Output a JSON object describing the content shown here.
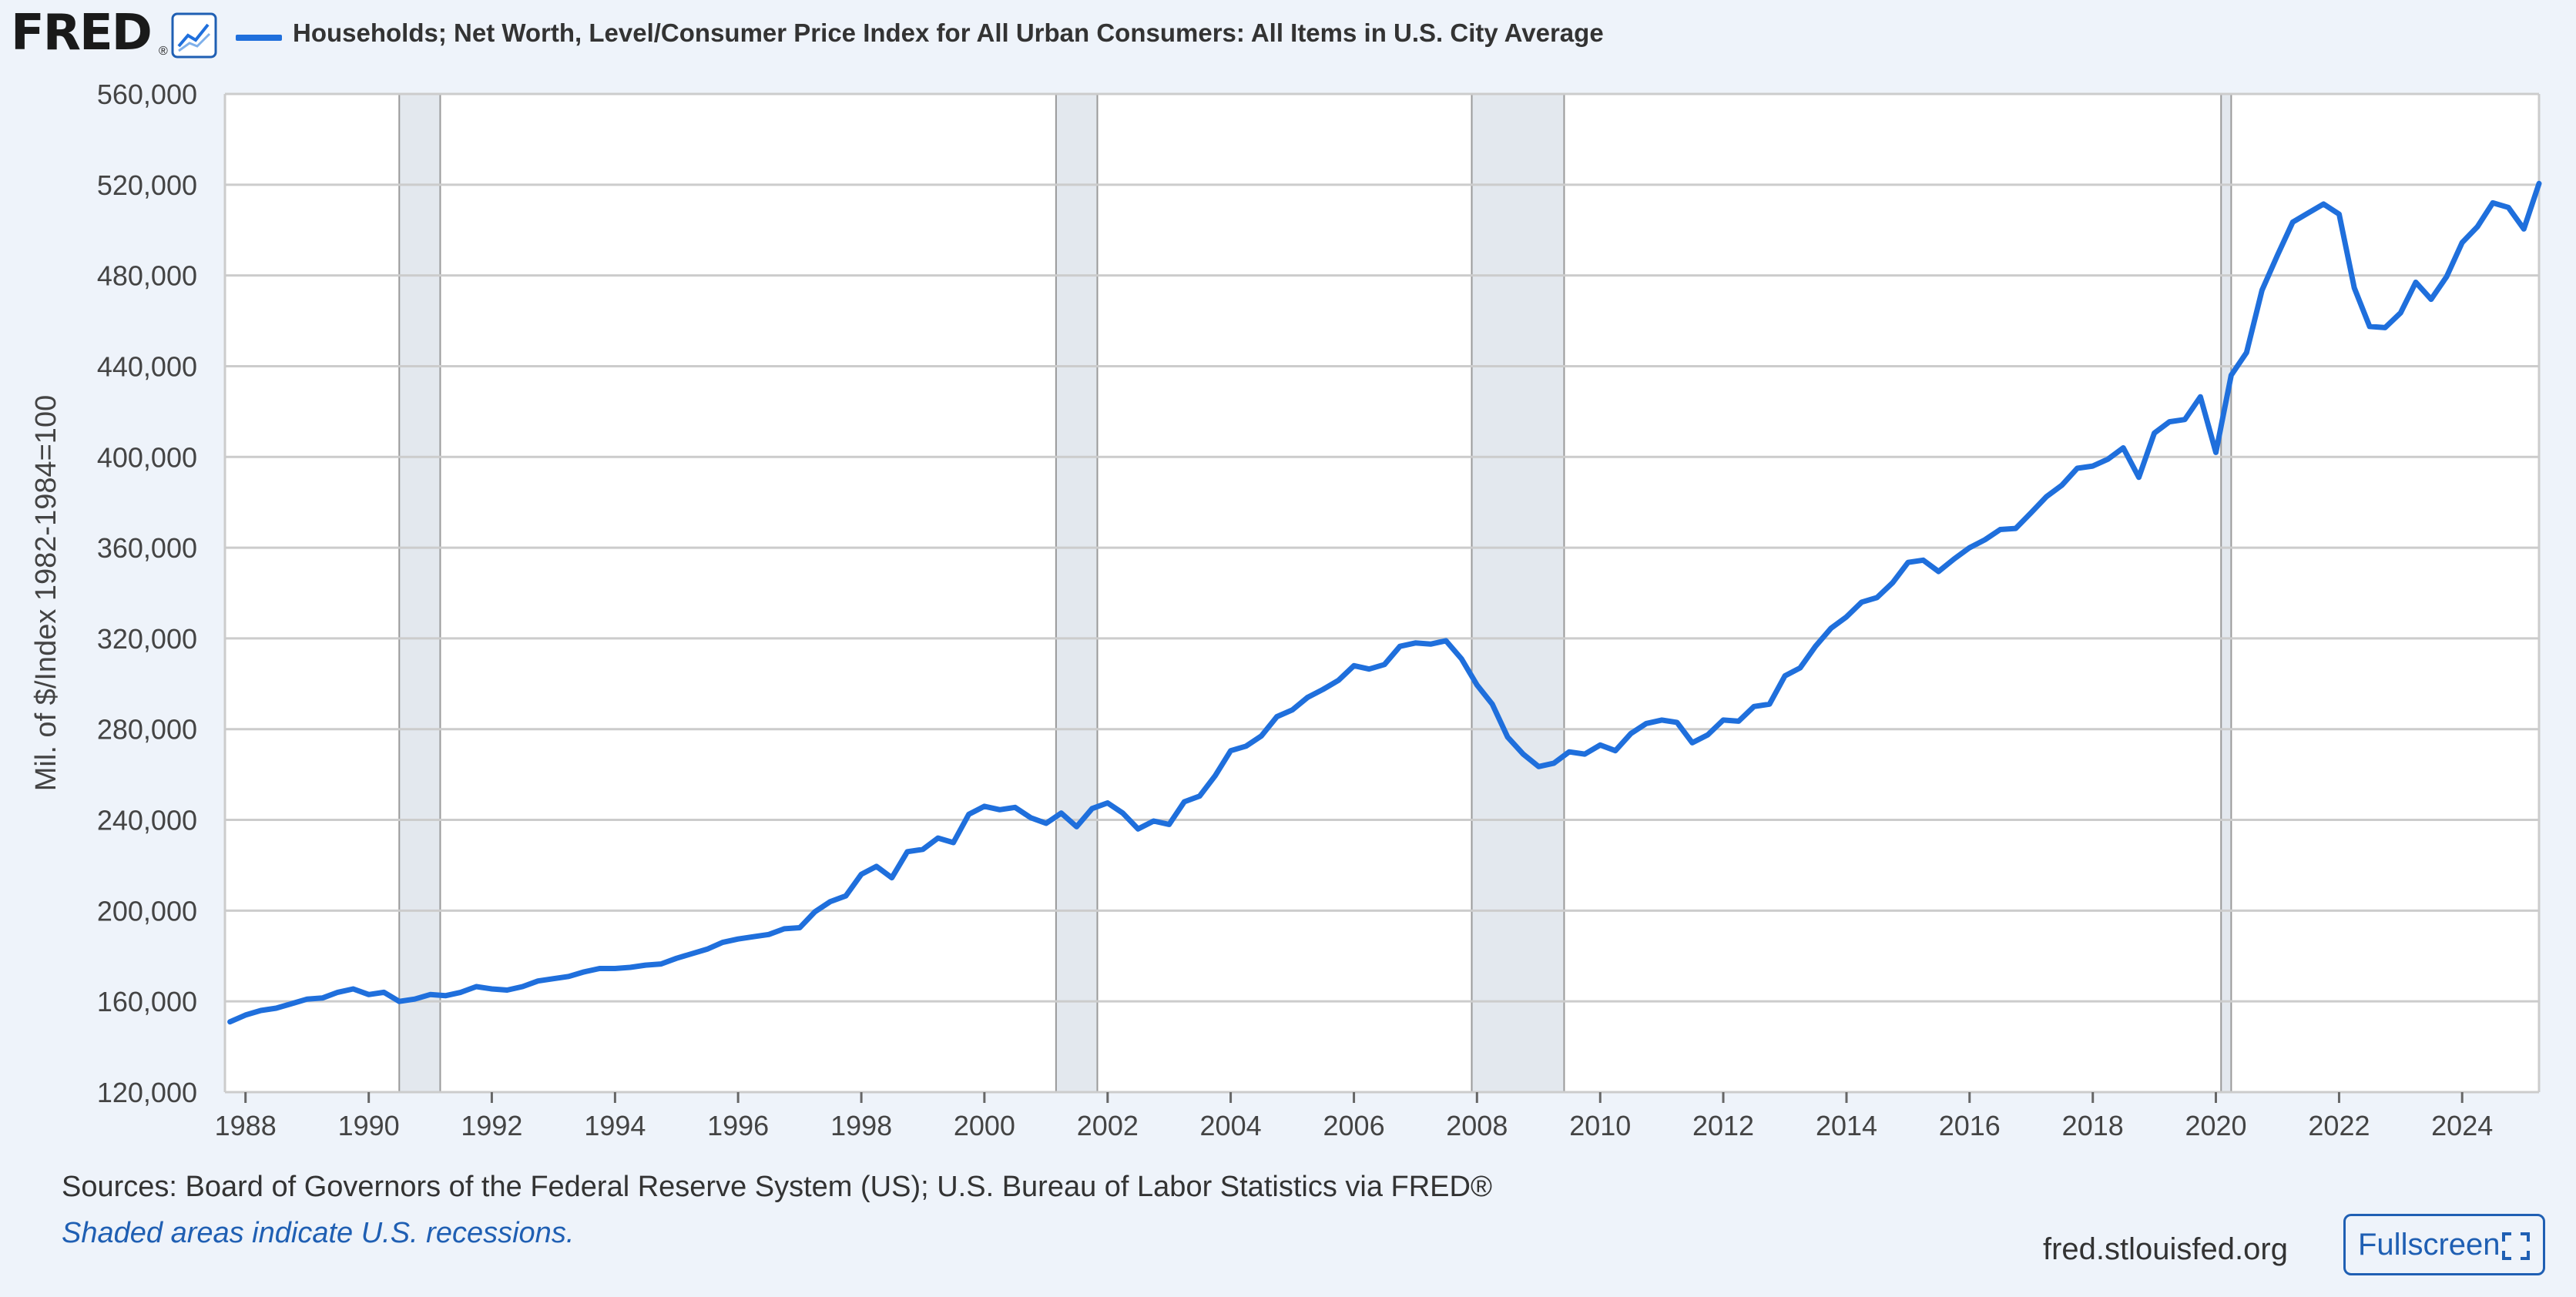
{
  "header": {
    "logo_text": "FRED",
    "logo_reg": "®",
    "logo_icon": "line-graph-icon",
    "series_title": "Households; Net Worth, Level/Consumer Price Index for All Urban Consumers: All Items in U.S. City Average"
  },
  "footer": {
    "sources": "Sources: Board of Governors of the Federal Reserve System (US); U.S. Bureau of Labor Statistics via FRED®",
    "shaded_note": "Shaded areas indicate U.S. recessions.",
    "site": "fred.stlouisfed.org",
    "fullscreen_label": "Fullscreen",
    "fullscreen_icon": "expand-icon"
  },
  "colors": {
    "series": "#1f6fdc",
    "recession_fill": "#e3e8ee",
    "grid": "#cccccc",
    "background": "#eef3fa"
  },
  "chart_data": {
    "type": "line",
    "title": "Households; Net Worth, Level/Consumer Price Index for All Urban Consumers: All Items in U.S. City Average",
    "ylabel": "Mil. of $/Index 1982-1984=100",
    "xlabel": "",
    "ylim": [
      120000,
      560000
    ],
    "xlim": [
      "1987-09-01",
      "2025-04-01"
    ],
    "grid": true,
    "y_ticks": [
      120000,
      160000,
      200000,
      240000,
      280000,
      320000,
      360000,
      400000,
      440000,
      480000,
      520000,
      560000
    ],
    "y_tick_labels": [
      "120,000",
      "160,000",
      "200,000",
      "240,000",
      "280,000",
      "320,000",
      "360,000",
      "400,000",
      "440,000",
      "480,000",
      "520,000",
      "560,000"
    ],
    "x_tick_labels": [
      "1988",
      "1990",
      "1992",
      "1994",
      "1996",
      "1998",
      "2000",
      "2002",
      "2004",
      "2006",
      "2008",
      "2010",
      "2012",
      "2014",
      "2016",
      "2018",
      "2020",
      "2022",
      "2024"
    ],
    "recessions": [
      {
        "start": "1990-07-01",
        "end": "1991-03-01"
      },
      {
        "start": "2001-03-01",
        "end": "2001-11-01"
      },
      {
        "start": "2007-12-01",
        "end": "2009-06-01"
      },
      {
        "start": "2020-02-01",
        "end": "2020-04-01"
      }
    ],
    "series": [
      {
        "x": [
          "1987-10-01",
          "1988-01-01",
          "1988-04-01",
          "1988-07-01",
          "1988-10-01",
          "1989-01-01",
          "1989-04-01",
          "1989-07-01",
          "1989-10-01",
          "1990-01-01",
          "1990-04-01",
          "1990-07-01",
          "1990-10-01",
          "1991-01-01",
          "1991-04-01",
          "1991-07-01",
          "1991-10-01",
          "1992-01-01",
          "1992-04-01",
          "1992-07-01",
          "1992-10-01",
          "1993-01-01",
          "1993-04-01",
          "1993-07-01",
          "1993-10-01",
          "1994-01-01",
          "1994-04-01",
          "1994-07-01",
          "1994-10-01",
          "1995-01-01",
          "1995-04-01",
          "1995-07-01",
          "1995-10-01",
          "1996-01-01",
          "1996-04-01",
          "1996-07-01",
          "1996-10-01",
          "1997-01-01",
          "1997-04-01",
          "1997-07-01",
          "1997-10-01",
          "1998-01-01",
          "1998-04-01",
          "1998-07-01",
          "1998-10-01",
          "1999-01-01",
          "1999-04-01",
          "1999-07-01",
          "1999-10-01",
          "2000-01-01",
          "2000-04-01",
          "2000-07-01",
          "2000-10-01",
          "2001-01-01",
          "2001-04-01",
          "2001-07-01",
          "2001-10-01",
          "2002-01-01",
          "2002-04-01",
          "2002-07-01",
          "2002-10-01",
          "2003-01-01",
          "2003-04-01",
          "2003-07-01",
          "2003-10-01",
          "2004-01-01",
          "2004-04-01",
          "2004-07-01",
          "2004-10-01",
          "2005-01-01",
          "2005-04-01",
          "2005-07-01",
          "2005-10-01",
          "2006-01-01",
          "2006-04-01",
          "2006-07-01",
          "2006-10-01",
          "2007-01-01",
          "2007-04-01",
          "2007-07-01",
          "2007-10-01",
          "2008-01-01",
          "2008-04-01",
          "2008-07-01",
          "2008-10-01",
          "2009-01-01",
          "2009-04-01",
          "2009-07-01",
          "2009-10-01",
          "2010-01-01",
          "2010-04-01",
          "2010-07-01",
          "2010-10-01",
          "2011-01-01",
          "2011-04-01",
          "2011-07-01",
          "2011-10-01",
          "2012-01-01",
          "2012-04-01",
          "2012-07-01",
          "2012-10-01",
          "2013-01-01",
          "2013-04-01",
          "2013-07-01",
          "2013-10-01",
          "2014-01-01",
          "2014-04-01",
          "2014-07-01",
          "2014-10-01",
          "2015-01-01",
          "2015-04-01",
          "2015-07-01",
          "2015-10-01",
          "2016-01-01",
          "2016-04-01",
          "2016-07-01",
          "2016-10-01",
          "2017-01-01",
          "2017-04-01",
          "2017-07-01",
          "2017-10-01",
          "2018-01-01",
          "2018-04-01",
          "2018-07-01",
          "2018-10-01",
          "2019-01-01",
          "2019-04-01",
          "2019-07-01",
          "2019-10-01",
          "2020-01-01",
          "2020-04-01",
          "2020-07-01",
          "2020-10-01",
          "2021-01-01",
          "2021-04-01",
          "2021-07-01",
          "2021-10-01",
          "2022-01-01",
          "2022-04-01",
          "2022-07-01",
          "2022-10-01",
          "2023-01-01",
          "2023-04-01",
          "2023-07-01",
          "2023-10-01",
          "2024-01-01",
          "2024-04-01",
          "2024-07-01",
          "2024-10-01",
          "2025-01-01",
          "2025-04-01"
        ],
        "values": [
          151000,
          154000,
          156000,
          157000,
          159000,
          161000,
          161500,
          164000,
          165500,
          163000,
          164000,
          160000,
          161000,
          163000,
          162500,
          164000,
          166500,
          165500,
          165000,
          166500,
          169000,
          170000,
          171000,
          173000,
          174500,
          174500,
          175000,
          176000,
          176500,
          179000,
          181000,
          183000,
          186000,
          187500,
          188500,
          189500,
          192000,
          192500,
          199500,
          204000,
          206500,
          216000,
          219500,
          214500,
          226000,
          227000,
          232000,
          230000,
          242500,
          246000,
          244500,
          245500,
          241000,
          238500,
          243000,
          237000,
          245000,
          247500,
          243000,
          236000,
          239500,
          238000,
          248000,
          250500,
          259500,
          270500,
          272500,
          277000,
          285500,
          288500,
          294000,
          297500,
          301500,
          308000,
          306500,
          308500,
          316500,
          318000,
          317500,
          319000,
          311000,
          299500,
          291000,
          276500,
          269000,
          263500,
          265000,
          270000,
          269000,
          273000,
          270500,
          278000,
          282500,
          284000,
          283000,
          274000,
          277500,
          284000,
          283500,
          290000,
          291000,
          303500,
          307000,
          316500,
          324500,
          329500,
          336000,
          338000,
          344500,
          353500,
          354500,
          349500,
          355000,
          360000,
          363500,
          368000,
          368500,
          375500,
          382500,
          387500,
          395000,
          396000,
          399000,
          404000,
          391000,
          410500,
          415500,
          416500,
          426500,
          402000,
          436000,
          446000,
          473500,
          489000,
          503500,
          507500,
          511500,
          507000,
          474500,
          457500,
          457000,
          463500,
          477000,
          469500,
          479500,
          494500,
          501500,
          512000,
          510000,
          500500,
          520500
        ]
      }
    ]
  }
}
